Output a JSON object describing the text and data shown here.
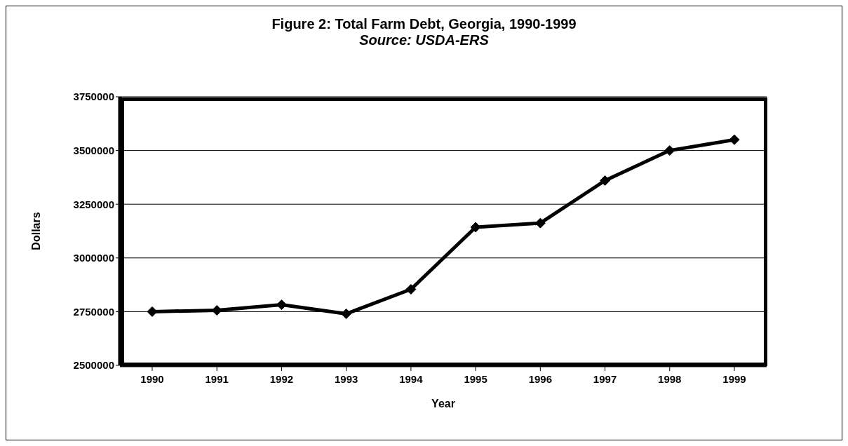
{
  "chart_data": {
    "type": "line",
    "title": "Figure 2:  Total Farm Debt, Georgia, 1990-1999",
    "subtitle": "Source:  USDA-ERS",
    "xlabel": "Year",
    "ylabel": "Dollars",
    "categories": [
      "1990",
      "1991",
      "1992",
      "1993",
      "1994",
      "1995",
      "1996",
      "1997",
      "1998",
      "1999"
    ],
    "series": [
      {
        "color": "#000000",
        "values": [
          2750000,
          2756000,
          2782000,
          2740000,
          2854000,
          3143000,
          3162000,
          3360000,
          3500000,
          3550000
        ]
      }
    ],
    "ylim": [
      2500000,
      3750000
    ],
    "yticks": [
      2500000,
      2750000,
      3000000,
      3250000,
      3500000,
      3750000
    ],
    "grid": "y",
    "marker": "diamond",
    "line_style": "solid"
  }
}
